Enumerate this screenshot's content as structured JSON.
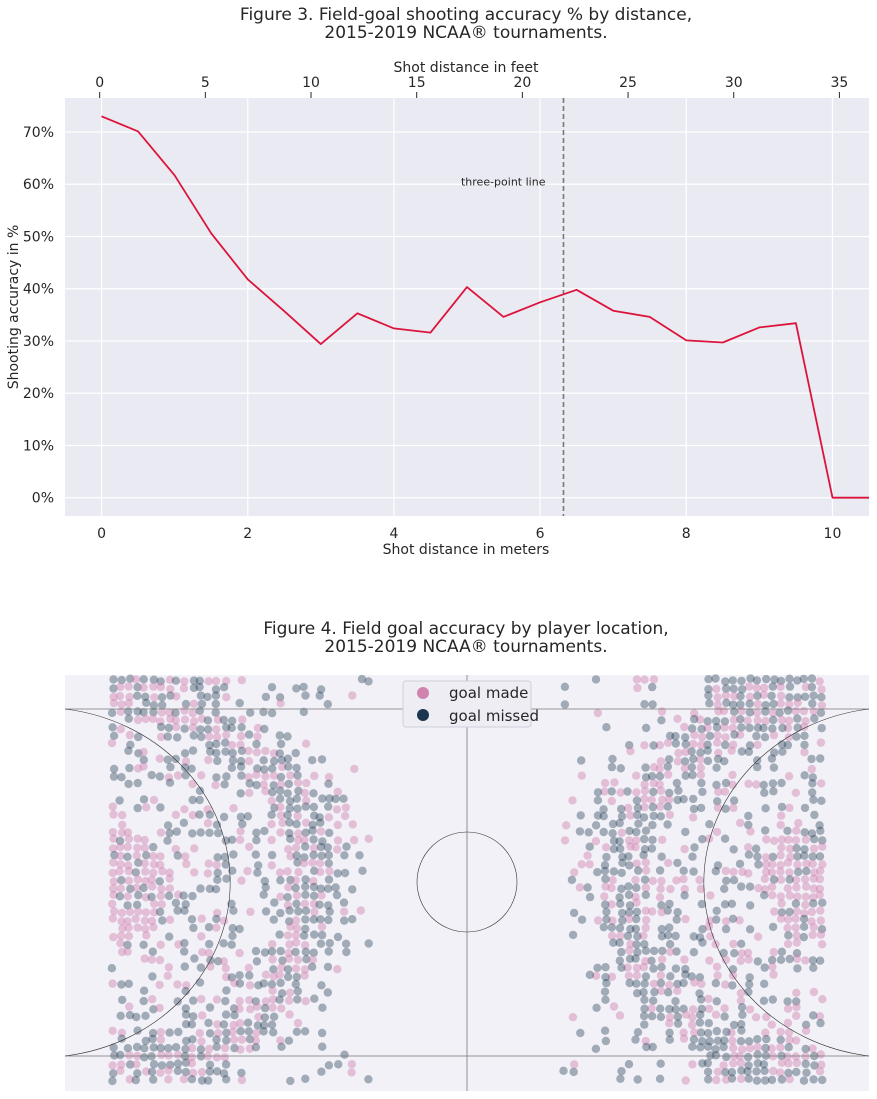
{
  "chart_data": [
    {
      "type": "line",
      "title_line1": "Figure 3. Field-goal shooting accuracy % by distance,",
      "title_line2": "2015-2019 NCAA® tournaments.",
      "xlabel": "Shot distance in meters",
      "x2label": "Shot distance in feet",
      "ylabel": "Shooting accuracy in %",
      "xlim": [
        -0.5,
        10.5
      ],
      "ylim": [
        -3.5,
        76.5
      ],
      "x2lim": [
        -1.64,
        36.4
      ],
      "xticks": [
        0,
        2,
        4,
        6,
        8,
        10
      ],
      "x2ticks": [
        0,
        5,
        10,
        15,
        20,
        25,
        30,
        35
      ],
      "yticks": [
        0,
        10,
        20,
        30,
        40,
        50,
        60,
        70
      ],
      "ytick_labels": [
        "0%",
        "10%",
        "20%",
        "30%",
        "40%",
        "50%",
        "60%",
        "70%"
      ],
      "grid": true,
      "line_color": "#dc143c",
      "series": [
        {
          "x": [
            0,
            0.5,
            1,
            1.5,
            2,
            2.5,
            3,
            3.5,
            4,
            4.5,
            5,
            5.5,
            6,
            6.5,
            7,
            7.5,
            8,
            8.5,
            9,
            9.5,
            10,
            10.5
          ],
          "y": [
            73,
            70.1,
            61.7,
            50.6,
            41.8,
            35.7,
            29.4,
            35.3,
            32.4,
            31.6,
            40.3,
            34.6,
            37.4,
            39.8,
            35.8,
            34.6,
            30.1,
            29.7,
            32.6,
            33.4,
            0,
            0
          ]
        }
      ],
      "vline": {
        "x": 6.32,
        "color": "#777777",
        "label": "three-point line",
        "label_y": 60.5
      }
    },
    {
      "type": "scatter",
      "title_line1": "Figure 4. Field goal accuracy by player location,",
      "title_line2": "2015-2019 NCAA® tournaments.",
      "legend_position": "top-center",
      "legend": [
        {
          "label": "goal made",
          "color": "#d183af"
        },
        {
          "label": "goal missed",
          "color": "#1d3650"
        }
      ],
      "court": {
        "length_m": 28.65,
        "width_m": 15.24,
        "three_point_radius_m": 6.32,
        "center_circle_radius_m": 1.83
      }
    }
  ]
}
